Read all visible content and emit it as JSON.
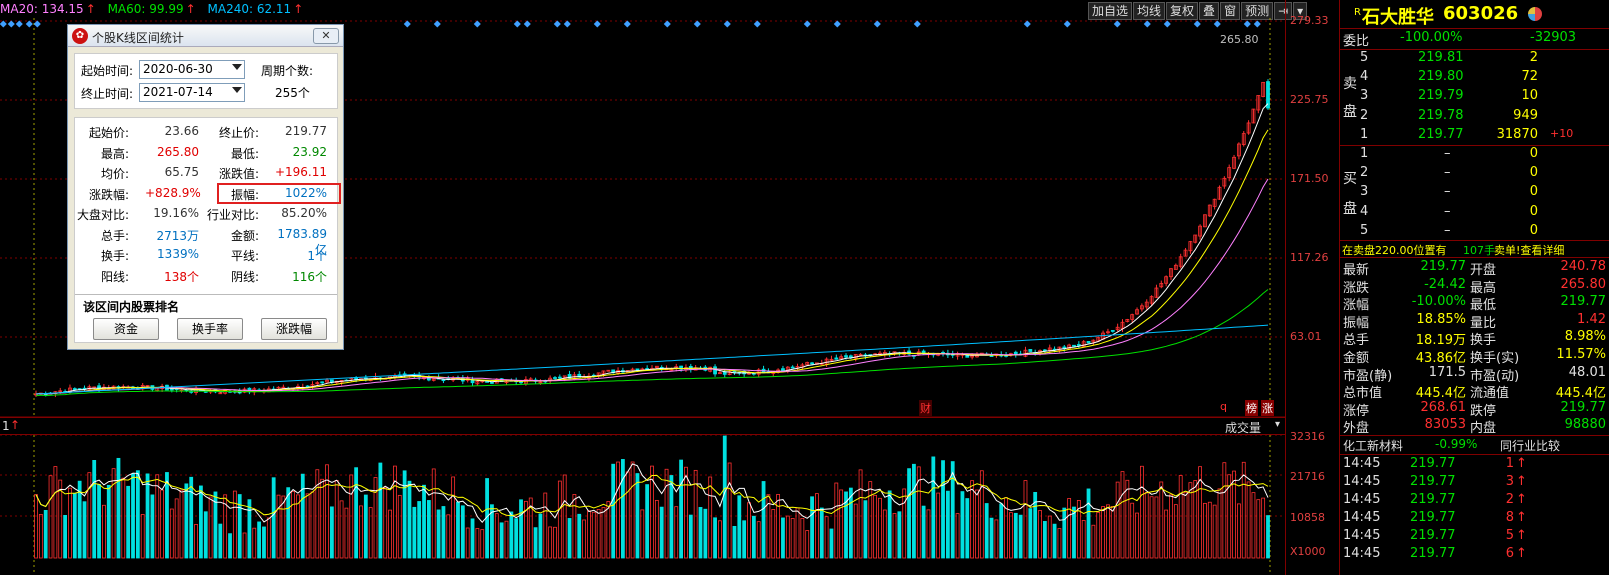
{
  "ma": {
    "ma20": "MA20: 134.15",
    "ma60": "MA60: 99.99",
    "ma240": "MA240: 62.11",
    "arrow": "↑"
  },
  "toolbar": [
    "加自选",
    "均线",
    "复权",
    "叠",
    "窗",
    "预测"
  ],
  "price_axis": [
    "279.33",
    "225.75",
    "171.50",
    "117.26",
    "63.01"
  ],
  "high_label": "265.80",
  "vol_axis": [
    "32316",
    "21716",
    "10858",
    "X1000"
  ],
  "vol_header": "成交量",
  "vol_index": "1",
  "chart_markers": {
    "cai": "财",
    "q": "q",
    "bang": "榜",
    "zhang": "涨"
  },
  "dialog": {
    "title": "个股K线区间统计",
    "start_label": "起始时间:",
    "start_value": "2020-06-30",
    "end_label": "终止时间:",
    "end_value": "2021-07-14",
    "period_label": "周期个数:",
    "period_value": "255个",
    "stats": [
      {
        "l1": "起始价:",
        "v1": "23.66",
        "c1": "black",
        "l2": "终止价:",
        "v2": "219.77",
        "c2": "black"
      },
      {
        "l1": "最高:",
        "v1": "265.80",
        "c1": "red",
        "l2": "最低:",
        "v2": "23.92",
        "c2": "green"
      },
      {
        "l1": "均价:",
        "v1": "65.75",
        "c1": "black",
        "l2": "涨跌值:",
        "v2": "+196.11",
        "c2": "red"
      },
      {
        "l1": "涨跌幅:",
        "v1": "+828.9%",
        "c1": "red",
        "l2": "振幅:",
        "v2": "1022%",
        "c2": "blue"
      },
      {
        "l1": "大盘对比:",
        "v1": "19.16%",
        "c1": "black",
        "l2": "行业对比:",
        "v2": "85.20%",
        "c2": "black"
      },
      {
        "l1": "总手:",
        "v1": "2713万",
        "c1": "blue",
        "l2": "金额:",
        "v2": "1783.89亿",
        "c2": "blue"
      },
      {
        "l1": "换手:",
        "v1": "1339%",
        "c1": "blue",
        "l2": "平线:",
        "v2": "1个",
        "c2": "blue"
      },
      {
        "l1": "阳线:",
        "v1": "138个",
        "c1": "red",
        "l2": "阴线:",
        "v2": "116个",
        "c2": "green"
      }
    ],
    "rank_title": "该区间内股票排名",
    "btn_fund": "资金",
    "btn_turnover": "换手率",
    "btn_change": "涨跌幅"
  },
  "stock": {
    "r": "R",
    "name": "石大胜华",
    "code": "603026",
    "weibi_label": "委比",
    "weibi_pct": "-100.00%",
    "weibi_val": "-32903",
    "sell_label_1": "卖",
    "sell_label_2": "盘",
    "buy_label_1": "买",
    "buy_label_2": "盘",
    "sells": [
      {
        "n": "5",
        "p": "219.81",
        "v": "2",
        "x": ""
      },
      {
        "n": "4",
        "p": "219.80",
        "v": "72",
        "x": ""
      },
      {
        "n": "3",
        "p": "219.79",
        "v": "10",
        "x": ""
      },
      {
        "n": "2",
        "p": "219.78",
        "v": "949",
        "x": ""
      },
      {
        "n": "1",
        "p": "219.77",
        "v": "31870",
        "x": "+10"
      }
    ],
    "buys": [
      {
        "n": "1",
        "p": "–",
        "v": "0"
      },
      {
        "n": "2",
        "p": "–",
        "v": "0"
      },
      {
        "n": "3",
        "p": "–",
        "v": "0"
      },
      {
        "n": "4",
        "p": "–",
        "v": "0"
      },
      {
        "n": "5",
        "p": "–",
        "v": "0"
      }
    ],
    "notice_a": "在卖盘220.00位置有",
    "notice_b": "107手",
    "notice_c": "卖单!查看详细",
    "quotes": [
      {
        "l1": "最新",
        "v1": "219.77",
        "c1": "c-g",
        "l2": "开盘",
        "v2": "240.78",
        "c2": "c-r"
      },
      {
        "l1": "涨跌",
        "v1": "-24.42",
        "c1": "c-g",
        "l2": "最高",
        "v2": "265.80",
        "c2": "c-r"
      },
      {
        "l1": "涨幅",
        "v1": "-10.00%",
        "c1": "c-g",
        "l2": "最低",
        "v2": "219.77",
        "c2": "c-g"
      },
      {
        "l1": "振幅",
        "v1": "18.85%",
        "c1": "c-y",
        "l2": "量比",
        "v2": "1.42",
        "c2": "c-r"
      },
      {
        "l1": "总手",
        "v1": "18.19万",
        "c1": "c-y",
        "l2": "换手",
        "v2": "8.98%",
        "c2": "c-y"
      },
      {
        "l1": "金额",
        "v1": "43.86亿",
        "c1": "c-y",
        "l2": "换手(实)",
        "v2": "11.57%",
        "c2": "c-y"
      },
      {
        "l1": "市盈(静)",
        "v1": "171.5",
        "c1": "c-w",
        "l2": "市盈(动)",
        "v2": "48.01",
        "c2": "c-w"
      },
      {
        "l1": "总市值",
        "v1": "445.4亿",
        "c1": "c-y",
        "l2": "流通值",
        "v2": "445.4亿",
        "c2": "c-y"
      },
      {
        "l1": "涨停",
        "v1": "268.61",
        "c1": "c-r",
        "l2": "跌停",
        "v2": "219.77",
        "c2": "c-g"
      },
      {
        "l1": "外盘",
        "v1": "83053",
        "c1": "c-r",
        "l2": "内盘",
        "v2": "98880",
        "c2": "c-g"
      }
    ],
    "industry": "化工新材料",
    "industry_pct": "-0.99%",
    "industry_compare": "同行业比较",
    "ticks": [
      {
        "t": "14:45",
        "p": "219.77",
        "v": "1",
        "d": "↑"
      },
      {
        "t": "14:45",
        "p": "219.77",
        "v": "3",
        "d": "↑"
      },
      {
        "t": "14:45",
        "p": "219.77",
        "v": "2",
        "d": "↑"
      },
      {
        "t": "14:45",
        "p": "219.77",
        "v": "8",
        "d": "↑"
      },
      {
        "t": "14:45",
        "p": "219.77",
        "v": "5",
        "d": "↑"
      },
      {
        "t": "14:45",
        "p": "219.77",
        "v": "6",
        "d": "↑"
      }
    ]
  },
  "colors": {
    "up": "#ff3030",
    "down": "#00e0e0",
    "ma5": "#ffffff",
    "ma10": "#ffff00",
    "ma20": "#ff80ff",
    "ma60": "#00e000",
    "ma240": "#00c0ff",
    "grid": "#800000"
  }
}
